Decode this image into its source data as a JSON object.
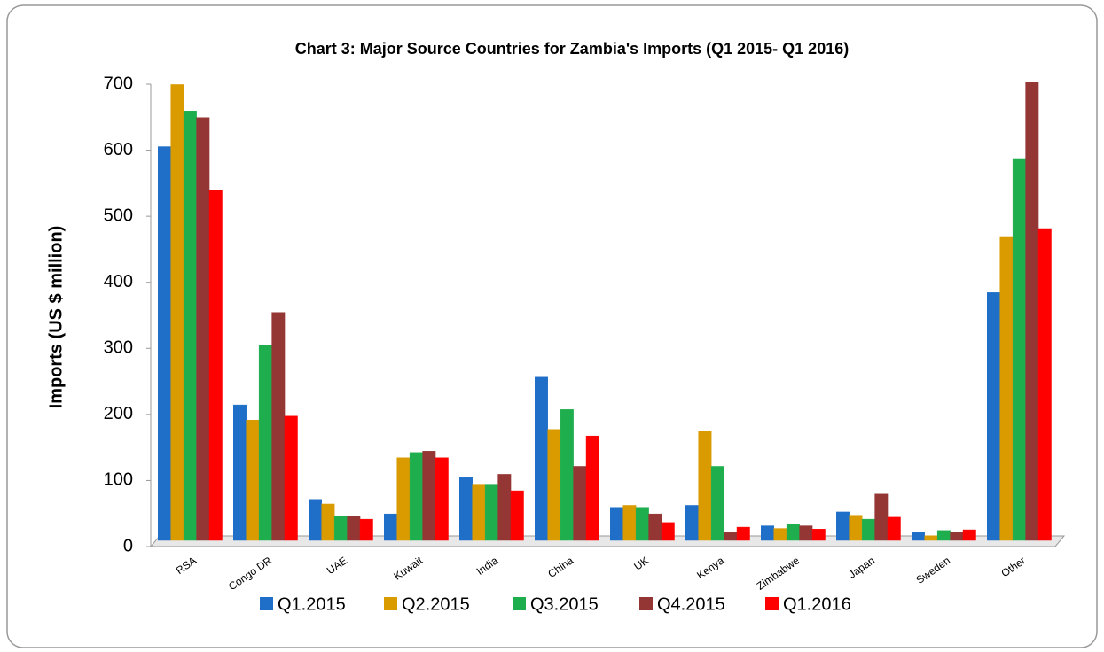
{
  "chart_data": {
    "type": "bar",
    "title": "Chart 3: Major Source Countries for Zambia's Imports (Q1 2015- Q1 2016)",
    "y_label": "Imports (US $ million)",
    "categories": [
      "RSA",
      "Congo DR",
      "UAE",
      "Kuwait",
      "India",
      "China",
      "UK",
      "Kenya",
      "Zimbabwe",
      "Japan",
      "Sweden",
      "Other"
    ],
    "series": [
      {
        "name": "Q1.2015",
        "color": "#1f6fc9",
        "values": [
          596,
          205,
          62,
          40,
          95,
          247,
          50,
          53,
          22,
          43,
          12,
          375
        ]
      },
      {
        "name": "Q2.2015",
        "color": "#d99b00",
        "values": [
          690,
          182,
          55,
          125,
          85,
          168,
          53,
          165,
          18,
          38,
          7,
          460
        ]
      },
      {
        "name": "Q3.2015",
        "color": "#1fae4e",
        "values": [
          650,
          295,
          37,
          133,
          85,
          198,
          50,
          112,
          25,
          32,
          15,
          578
        ]
      },
      {
        "name": "Q4.2015",
        "color": "#943634",
        "values": [
          640,
          345,
          37,
          135,
          100,
          112,
          40,
          12,
          22,
          70,
          13,
          693
        ]
      },
      {
        "name": "Q1.2016",
        "color": "#ff0000",
        "values": [
          530,
          188,
          32,
          125,
          75,
          158,
          27,
          20,
          17,
          35,
          16,
          472
        ]
      }
    ],
    "ylim": [
      0,
      700
    ],
    "yticks": [
      0,
      100,
      200,
      300,
      400,
      500,
      600,
      700
    ],
    "grid": false
  }
}
